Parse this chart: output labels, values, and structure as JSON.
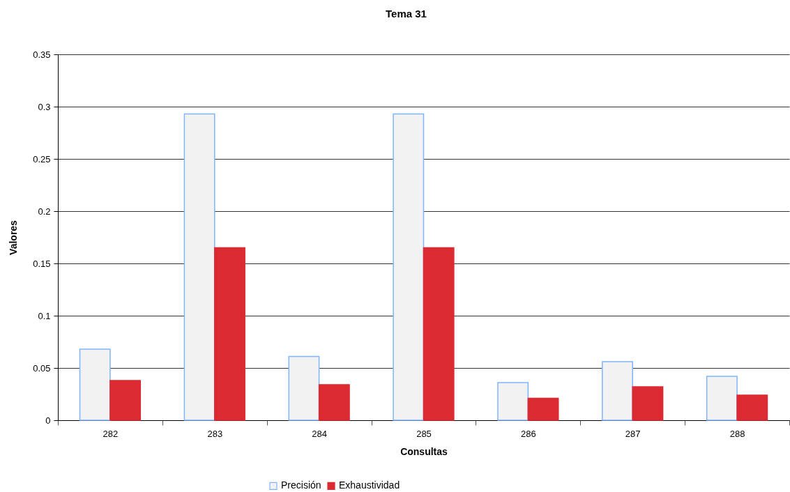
{
  "chart_data": {
    "type": "bar",
    "title": "Tema 31",
    "xlabel": "Consultas",
    "ylabel": "Valores",
    "categories": [
      "282",
      "283",
      "284",
      "285",
      "286",
      "287",
      "288"
    ],
    "series": [
      {
        "name": "Precisión",
        "color": "#f2f2f2",
        "values": [
          0.068,
          0.293,
          0.061,
          0.293,
          0.036,
          0.056,
          0.042
        ]
      },
      {
        "name": "Exhaustividad",
        "color": "#dc2a33",
        "values": [
          0.038,
          0.165,
          0.034,
          0.165,
          0.021,
          0.032,
          0.024
        ]
      }
    ],
    "ylim": [
      0,
      0.35
    ],
    "yticks": [
      0,
      0.05,
      0.1,
      0.15,
      0.2,
      0.25,
      0.3,
      0.35
    ],
    "grid": "y",
    "legend": "bottom"
  }
}
